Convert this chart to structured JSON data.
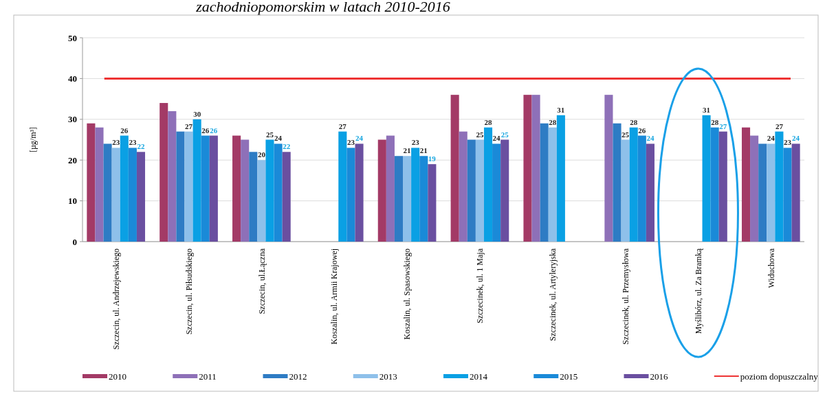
{
  "chart_data": {
    "type": "bar",
    "title": "zachodniopomorskim w latach 2010-2016",
    "ylabel": "[µg/m³]",
    "categories": [
      "Szczecin, ul. Andrzejewskiego",
      "Szczecin, ul. Piłsudskiego",
      "Szczecin, ul.Łączna",
      "Koszalin, ul. Armii Krajowej",
      "Koszalin, ul. Spasowskiego",
      "Szczecinek, ul. 1 Maja",
      "Szczecinek, ul. Artyleryjska",
      "Szczecinek, ul. Przemysłowa",
      "Myślibórz, ul. Za Bramką",
      "Widuchowa"
    ],
    "series": [
      {
        "name": "2010",
        "color": "#a33a66",
        "values": [
          29,
          34,
          26,
          null,
          25,
          36,
          36,
          null,
          null,
          28
        ]
      },
      {
        "name": "2011",
        "color": "#8e70b8",
        "values": [
          28,
          32,
          25,
          null,
          26,
          27,
          36,
          36,
          null,
          26
        ]
      },
      {
        "name": "2012",
        "color": "#2e7cc4",
        "values": [
          24,
          27,
          22,
          null,
          21,
          25,
          29,
          29,
          null,
          24
        ]
      },
      {
        "name": "2013",
        "color": "#8ec0ea",
        "values": [
          23,
          27,
          20,
          null,
          21,
          25,
          28,
          25,
          null,
          24
        ],
        "value_labels": [
          "23",
          "27",
          "20",
          null,
          "21",
          "25",
          "28",
          "25",
          null,
          "24"
        ]
      },
      {
        "name": "2014",
        "color": "#0aa0e4",
        "values": [
          26,
          30,
          25,
          27,
          23,
          28,
          31,
          28,
          31,
          27
        ],
        "value_labels": [
          "26",
          "30",
          "25",
          "27",
          "23",
          "28",
          "31",
          "28",
          "31",
          "27"
        ]
      },
      {
        "name": "2015",
        "color": "#1a8ad8",
        "values": [
          23,
          26,
          24,
          23,
          21,
          24,
          null,
          26,
          28,
          23
        ],
        "value_labels": [
          "23",
          "26",
          "24",
          "23",
          "21",
          "24",
          null,
          "26",
          "28",
          "23"
        ]
      },
      {
        "name": "2016",
        "color": "#6a4fa0",
        "values": [
          22,
          26,
          22,
          24,
          19,
          25,
          null,
          24,
          27,
          24
        ],
        "value_labels": [
          "22",
          "26",
          "22",
          "24",
          "19",
          "25",
          null,
          "24",
          "27",
          "24"
        ]
      }
    ],
    "ylim": [
      0,
      50
    ],
    "yticks": [
      0,
      10,
      20,
      30,
      40,
      50
    ],
    "grid": "y",
    "legend": "bottom",
    "ref_lines": [
      {
        "axis": "y",
        "value": 40,
        "label": "poziom dopuszczalny",
        "color": "#ee3333"
      }
    ]
  }
}
